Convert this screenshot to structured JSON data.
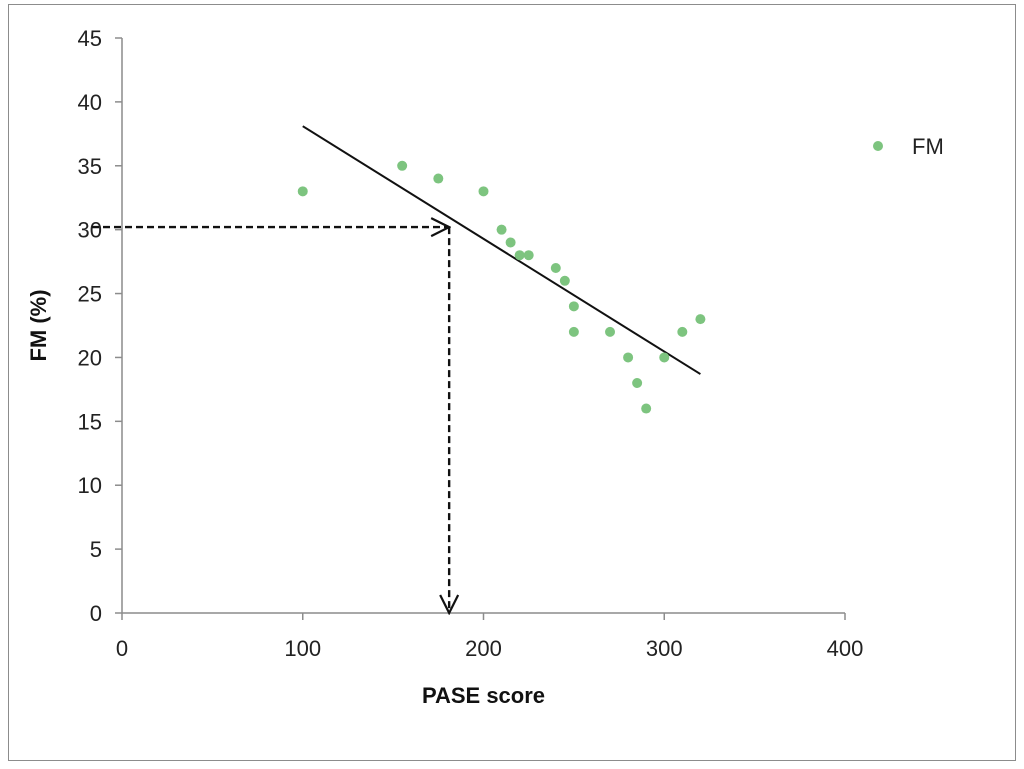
{
  "chart_data": {
    "type": "scatter",
    "title": "",
    "xlabel": "PASE score",
    "ylabel": "FM (%)",
    "xlim": [
      0,
      400
    ],
    "ylim": [
      0,
      45
    ],
    "x_ticks": [
      0,
      100,
      200,
      300,
      400
    ],
    "y_ticks": [
      0,
      5,
      10,
      15,
      20,
      25,
      30,
      35,
      40,
      45
    ],
    "grid": false,
    "legend_position": "right",
    "series": [
      {
        "name": "FM",
        "color": "#7dc47f",
        "points": [
          {
            "x": 100,
            "y": 33
          },
          {
            "x": 155,
            "y": 35
          },
          {
            "x": 175,
            "y": 34
          },
          {
            "x": 200,
            "y": 33
          },
          {
            "x": 210,
            "y": 30
          },
          {
            "x": 215,
            "y": 29
          },
          {
            "x": 220,
            "y": 28
          },
          {
            "x": 225,
            "y": 28
          },
          {
            "x": 240,
            "y": 27
          },
          {
            "x": 245,
            "y": 26
          },
          {
            "x": 250,
            "y": 24
          },
          {
            "x": 250,
            "y": 22
          },
          {
            "x": 270,
            "y": 22
          },
          {
            "x": 280,
            "y": 20
          },
          {
            "x": 285,
            "y": 18
          },
          {
            "x": 290,
            "y": 16
          },
          {
            "x": 300,
            "y": 20
          },
          {
            "x": 310,
            "y": 22
          },
          {
            "x": 320,
            "y": 23
          }
        ]
      }
    ],
    "trendline": {
      "x1": 100,
      "y1": 38.1,
      "x2": 320,
      "y2": 18.7,
      "color": "#111111"
    },
    "reference_lines": [
      {
        "style": "dashed-arrow",
        "from": {
          "x": 0,
          "y": 30.2
        },
        "to": {
          "x": 181,
          "y": 30.2
        }
      },
      {
        "style": "dashed-arrow",
        "from": {
          "x": 181,
          "y": 30.2
        },
        "to": {
          "x": 181,
          "y": 0
        }
      }
    ]
  }
}
